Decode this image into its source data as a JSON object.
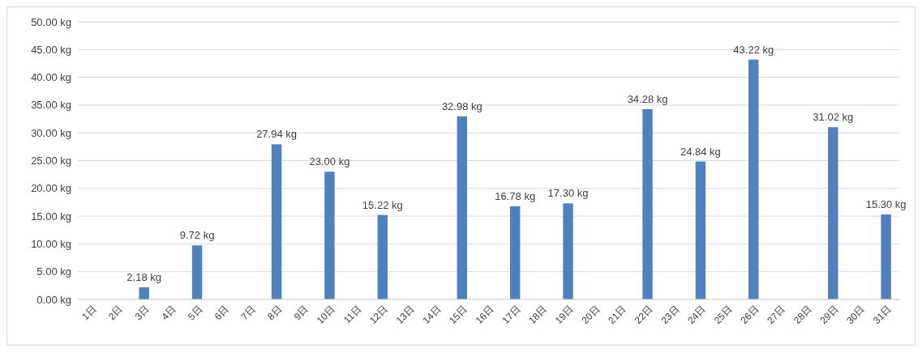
{
  "chart_data": {
    "type": "bar",
    "categories": [
      "1日",
      "2日",
      "3日",
      "4日",
      "5日",
      "6日",
      "7日",
      "8日",
      "9日",
      "10日",
      "11日",
      "12日",
      "13日",
      "14日",
      "15日",
      "16日",
      "17日",
      "18日",
      "19日",
      "20日",
      "21日",
      "22日",
      "23日",
      "24日",
      "25日",
      "26日",
      "27日",
      "28日",
      "29日",
      "30日",
      "31日"
    ],
    "values": [
      null,
      null,
      2.18,
      null,
      9.72,
      null,
      null,
      27.94,
      null,
      23.0,
      null,
      15.22,
      null,
      null,
      32.98,
      null,
      16.78,
      null,
      17.3,
      null,
      null,
      34.28,
      null,
      24.84,
      null,
      43.22,
      null,
      null,
      31.02,
      null,
      15.3
    ],
    "value_labels": [
      null,
      null,
      "2.18 kg",
      null,
      "9.72 kg",
      null,
      null,
      "27.94 kg",
      null,
      "23.00 kg",
      null,
      "15.22 kg",
      null,
      null,
      "32.98 kg",
      null,
      "16.78 kg",
      null,
      "17.30 kg",
      null,
      null,
      "34.28 kg",
      null,
      "24.84 kg",
      null,
      "43.22 kg",
      null,
      null,
      "31.02 kg",
      null,
      "15.30 kg"
    ],
    "color": "#4f81bd",
    "ylim": [
      0,
      50
    ],
    "yticks": [
      {
        "value": 0,
        "label": "0.00 kg"
      },
      {
        "value": 5,
        "label": "5.00 kg"
      },
      {
        "value": 10,
        "label": "10.00 kg"
      },
      {
        "value": 15,
        "label": "15.00 kg"
      },
      {
        "value": 20,
        "label": "20.00 kg"
      },
      {
        "value": 25,
        "label": "25.00 kg"
      },
      {
        "value": 30,
        "label": "30.00 kg"
      },
      {
        "value": 35,
        "label": "35.00 kg"
      },
      {
        "value": 40,
        "label": "40.00 kg"
      },
      {
        "value": 45,
        "label": "45.00 kg"
      },
      {
        "value": 50,
        "label": "50.00 kg"
      }
    ],
    "grid": "y"
  }
}
